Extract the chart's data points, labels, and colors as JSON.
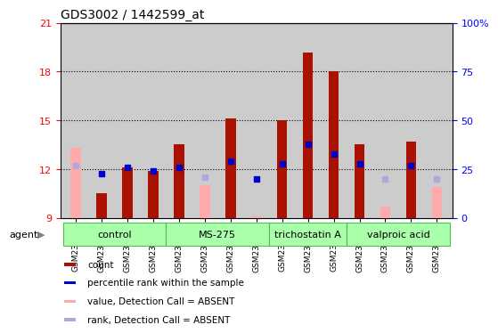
{
  "title": "GDS3002 / 1442599_at",
  "samples": [
    "GSM234794",
    "GSM234795",
    "GSM234796",
    "GSM234797",
    "GSM234798",
    "GSM234799",
    "GSM234800",
    "GSM234801",
    "GSM234802",
    "GSM234803",
    "GSM234804",
    "GSM234805",
    "GSM234806",
    "GSM234807",
    "GSM234808"
  ],
  "agents": [
    {
      "label": "control",
      "start": 0,
      "end": 4
    },
    {
      "label": "MS-275",
      "start": 4,
      "end": 8
    },
    {
      "label": "trichostatin A",
      "start": 8,
      "end": 11
    },
    {
      "label": "valproic acid",
      "start": 11,
      "end": 15
    }
  ],
  "red_bars": [
    null,
    10.5,
    12.1,
    11.9,
    13.5,
    null,
    15.1,
    null,
    15.0,
    19.2,
    18.0,
    13.5,
    null,
    13.7,
    null
  ],
  "pink_bars": [
    13.3,
    null,
    null,
    null,
    null,
    11.0,
    null,
    9.1,
    null,
    null,
    null,
    null,
    9.7,
    null,
    10.9
  ],
  "blue_squares": [
    null,
    11.7,
    12.1,
    11.9,
    12.1,
    null,
    12.5,
    11.4,
    12.3,
    13.5,
    12.9,
    12.3,
    null,
    12.2,
    null
  ],
  "light_blue_squares": [
    12.2,
    null,
    null,
    null,
    null,
    11.5,
    null,
    null,
    null,
    null,
    null,
    null,
    11.4,
    null,
    11.4
  ],
  "ylim": [
    9,
    21
  ],
  "yticks_left": [
    9,
    12,
    15,
    18,
    21
  ],
  "yticks_right": [
    0,
    25,
    50,
    75,
    100
  ],
  "bar_color_red": "#aa1100",
  "bar_color_pink": "#ffaaaa",
  "sq_color_blue": "#0000cc",
  "sq_color_light_blue": "#aaaadd",
  "background_color": "#cccccc",
  "ybase": 9,
  "grid_lines": [
    12,
    15,
    18
  ]
}
